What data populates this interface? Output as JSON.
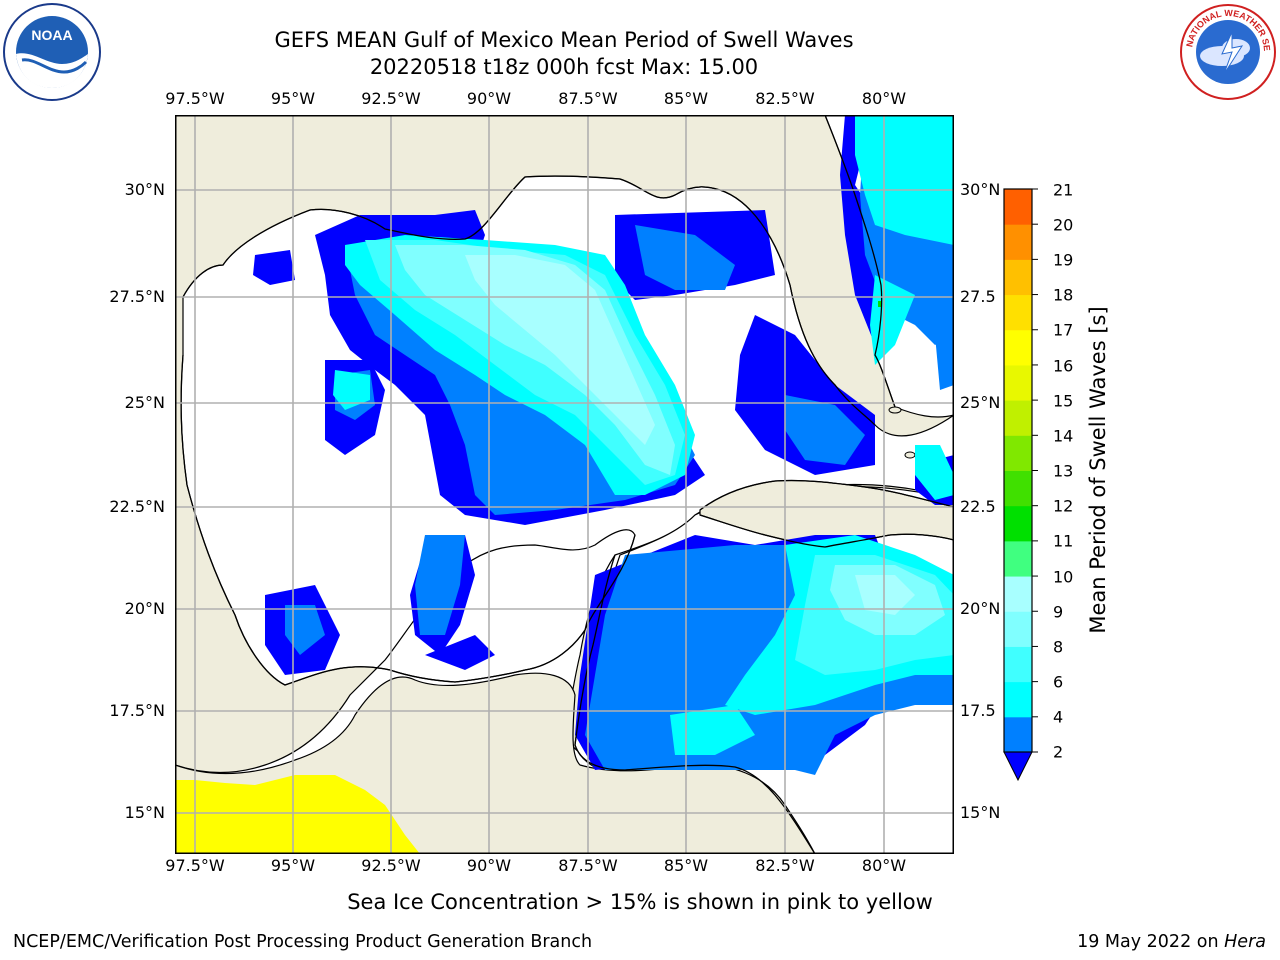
{
  "title": {
    "line1": "GEFS MEAN Gulf of Mexico Mean Period of Swell Waves",
    "line2": "20220518 t18z 000h fcst   Max: 15.00"
  },
  "logos": {
    "left": {
      "text": "NOAA",
      "ring_text": "NATIONAL OCEANIC AND ATMOSPHERIC ADMINISTRATION · U.S. DEPARTMENT OF COMMERCE"
    },
    "right": {
      "ring_text": "NATIONAL WEATHER SERVICE"
    }
  },
  "map": {
    "lon_labels": [
      "97.5°W",
      "95°W",
      "92.5°W",
      "90°W",
      "87.5°W",
      "85°W",
      "82.5°W",
      "80°W"
    ],
    "lat_labels_left": [
      "30°N",
      "27.5°N",
      "25°N",
      "22.5°N",
      "20°N",
      "17.5°N",
      "15°N"
    ],
    "lat_labels_right": [
      "30°N",
      "27.5",
      "25°N",
      "22.5",
      "20°N",
      "17.5",
      "15°N"
    ],
    "extent": {
      "lon": [
        -98,
        -80.3
      ],
      "lat": [
        14,
        31.8
      ]
    },
    "land_color": "#efeddc",
    "grid_color": "#b0b0b0"
  },
  "colorbar": {
    "label": "Mean Period of Swell Waves [s]",
    "ticks": [
      "2",
      "4",
      "6",
      "8",
      "9",
      "10",
      "11",
      "12",
      "13",
      "14",
      "15",
      "16",
      "17",
      "18",
      "19",
      "20",
      "21"
    ],
    "under_color": "#0000ff",
    "colors": [
      "#0080ff",
      "#00ffff",
      "#40ffff",
      "#80ffff",
      "#a8ffff",
      "#40ff80",
      "#00e000",
      "#40e000",
      "#80e800",
      "#c0f000",
      "#e8f800",
      "#ffff00",
      "#ffe000",
      "#ffc000",
      "#ff9000",
      "#ff6000",
      "#ff3000",
      "#ff0000"
    ]
  },
  "note": "Sea Ice Concentration > 15% is shown in pink to yellow",
  "footer": {
    "left": "NCEP/EMC/Verification Post Processing Product Generation Branch",
    "date": "19 May 2022 on ",
    "machine": "Hera"
  }
}
